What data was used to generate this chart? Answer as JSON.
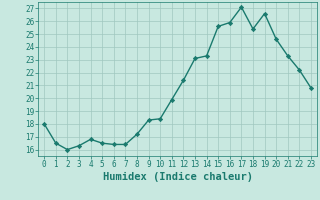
{
  "x": [
    0,
    1,
    2,
    3,
    4,
    5,
    6,
    7,
    8,
    9,
    10,
    11,
    12,
    13,
    14,
    15,
    16,
    17,
    18,
    19,
    20,
    21,
    22,
    23
  ],
  "y": [
    18,
    16.5,
    16,
    16.3,
    16.8,
    16.5,
    16.4,
    16.4,
    17.2,
    18.3,
    18.4,
    19.9,
    21.4,
    23.1,
    23.3,
    25.6,
    25.9,
    27.1,
    25.4,
    26.6,
    24.6,
    23.3,
    22.2,
    20.8
  ],
  "line_color": "#1a7a6e",
  "marker": "D",
  "marker_size": 2.2,
  "linewidth": 1.0,
  "bg_color": "#c8e8e0",
  "grid_color": "#a0c8c0",
  "xlabel": "Humidex (Indice chaleur)",
  "ylim": [
    15.5,
    27.5
  ],
  "xlim": [
    -0.5,
    23.5
  ],
  "yticks": [
    16,
    17,
    18,
    19,
    20,
    21,
    22,
    23,
    24,
    25,
    26,
    27
  ],
  "xticks": [
    0,
    1,
    2,
    3,
    4,
    5,
    6,
    7,
    8,
    9,
    10,
    11,
    12,
    13,
    14,
    15,
    16,
    17,
    18,
    19,
    20,
    21,
    22,
    23
  ],
  "tick_color": "#1a7a6e",
  "label_color": "#1a7a6e",
  "tick_fontsize": 5.5,
  "xlabel_fontsize": 7.5
}
